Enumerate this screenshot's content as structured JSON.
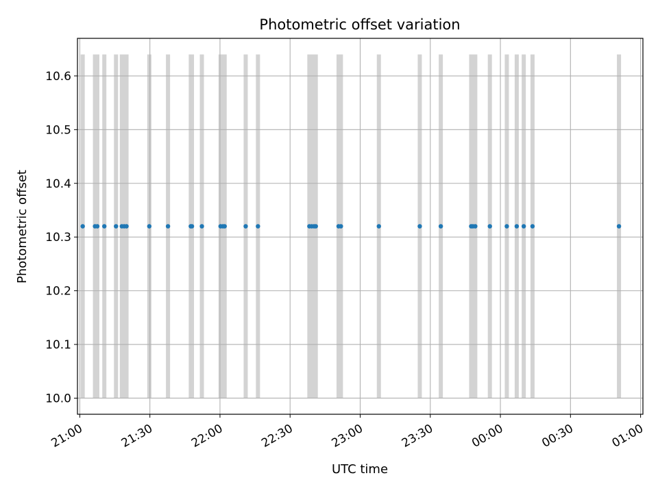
{
  "chart_data": {
    "type": "scatter",
    "title": "Photometric offset variation",
    "xlabel": "UTC time",
    "ylabel": "Photometric offset",
    "x_axis_kind": "time",
    "x_ticks": [
      "21:00",
      "21:30",
      "22:00",
      "22:30",
      "23:00",
      "23:30",
      "00:00",
      "00:30",
      "01:00"
    ],
    "xlim": [
      "20:59",
      "01:01"
    ],
    "y_ticks": [
      "10.0",
      "10.1",
      "10.2",
      "10.3",
      "10.4",
      "10.5",
      "10.6"
    ],
    "ylim": [
      9.97,
      10.67
    ],
    "grid": true,
    "exposure_band_range": [
      10.0,
      10.64
    ],
    "exposure_times": [
      "21:01:15",
      "21:06:30",
      "21:07:30",
      "21:10:30",
      "21:15:30",
      "21:18:00",
      "21:19:00",
      "21:20:00",
      "21:29:45",
      "21:37:45",
      "21:47:30",
      "21:48:00",
      "21:52:15",
      "22:00:15",
      "22:01:15",
      "22:02:00",
      "22:11:00",
      "22:16:15",
      "22:38:15",
      "22:39:15",
      "22:40:15",
      "22:41:00",
      "22:50:45",
      "22:51:45",
      "23:08:00",
      "23:25:30",
      "23:34:30",
      "23:47:30",
      "23:48:15",
      "23:49:15",
      "23:55:30",
      "00:02:45",
      "00:07:00",
      "00:10:00",
      "00:13:45",
      "00:50:45"
    ],
    "series": [
      {
        "color": "#1f77b4",
        "points": [
          {
            "t": "21:01:15",
            "y": 10.32
          },
          {
            "t": "21:06:30",
            "y": 10.32
          },
          {
            "t": "21:07:30",
            "y": 10.32
          },
          {
            "t": "21:10:30",
            "y": 10.32
          },
          {
            "t": "21:15:30",
            "y": 10.32
          },
          {
            "t": "21:18:00",
            "y": 10.32
          },
          {
            "t": "21:19:00",
            "y": 10.32
          },
          {
            "t": "21:20:00",
            "y": 10.32
          },
          {
            "t": "21:29:45",
            "y": 10.32
          },
          {
            "t": "21:37:45",
            "y": 10.32
          },
          {
            "t": "21:47:30",
            "y": 10.32
          },
          {
            "t": "21:48:00",
            "y": 10.32
          },
          {
            "t": "21:52:15",
            "y": 10.32
          },
          {
            "t": "22:00:15",
            "y": 10.32
          },
          {
            "t": "22:01:15",
            "y": 10.32
          },
          {
            "t": "22:02:00",
            "y": 10.32
          },
          {
            "t": "22:11:00",
            "y": 10.32
          },
          {
            "t": "22:16:15",
            "y": 10.32
          },
          {
            "t": "22:38:15",
            "y": 10.32
          },
          {
            "t": "22:39:15",
            "y": 10.32
          },
          {
            "t": "22:40:15",
            "y": 10.32
          },
          {
            "t": "22:41:00",
            "y": 10.32
          },
          {
            "t": "22:50:45",
            "y": 10.32
          },
          {
            "t": "22:51:45",
            "y": 10.32
          },
          {
            "t": "23:08:00",
            "y": 10.32
          },
          {
            "t": "23:25:30",
            "y": 10.32
          },
          {
            "t": "23:34:30",
            "y": 10.32
          },
          {
            "t": "23:47:30",
            "y": 10.32
          },
          {
            "t": "23:48:15",
            "y": 10.32
          },
          {
            "t": "23:49:15",
            "y": 10.32
          },
          {
            "t": "23:55:30",
            "y": 10.32
          },
          {
            "t": "00:02:45",
            "y": 10.32
          },
          {
            "t": "00:07:00",
            "y": 10.32
          },
          {
            "t": "00:10:00",
            "y": 10.32
          },
          {
            "t": "00:13:45",
            "y": 10.32
          },
          {
            "t": "00:50:45",
            "y": 10.32
          }
        ]
      }
    ],
    "colors": {
      "point": "#1f77b4",
      "band": "#d3d3d3",
      "grid": "#b0b0b0",
      "axes": "#000000"
    }
  }
}
